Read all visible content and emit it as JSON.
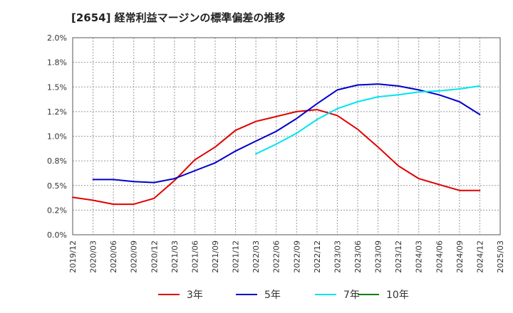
{
  "title": "[2654]  経常利益マージンの標準偏差の推移",
  "chart_data": {
    "type": "line",
    "x": [
      "2019/12",
      "2020/03",
      "2020/06",
      "2020/09",
      "2020/12",
      "2021/03",
      "2021/06",
      "2021/09",
      "2021/12",
      "2022/03",
      "2022/06",
      "2022/09",
      "2022/12",
      "2023/03",
      "2023/06",
      "2023/09",
      "2023/12",
      "2024/03",
      "2024/06",
      "2024/09",
      "2024/12",
      "2025/03"
    ],
    "ylim": [
      0,
      2.0
    ],
    "yticks": [
      "0.0%",
      "0.2%",
      "0.5%",
      "0.8%",
      "1.0%",
      "1.2%",
      "1.5%",
      "1.8%",
      "2.0%"
    ],
    "grid": true,
    "legend_position": "bottom",
    "series": [
      {
        "name": "3年",
        "color": "#e00000",
        "values": [
          0.38,
          0.35,
          0.31,
          0.31,
          0.37,
          0.55,
          0.76,
          0.89,
          1.06,
          1.15,
          1.2,
          1.25,
          1.27,
          1.21,
          1.07,
          0.89,
          0.7,
          0.57,
          0.51,
          0.45,
          0.45,
          null
        ]
      },
      {
        "name": "5年",
        "color": "#0000cc",
        "values": [
          null,
          0.56,
          0.56,
          0.54,
          0.53,
          0.57,
          0.65,
          0.73,
          0.85,
          0.95,
          1.05,
          1.18,
          1.33,
          1.47,
          1.52,
          1.53,
          1.51,
          1.47,
          1.42,
          1.35,
          1.22,
          null
        ]
      },
      {
        "name": "7年",
        "color": "#00e5ee",
        "values": [
          null,
          null,
          null,
          null,
          null,
          null,
          null,
          null,
          null,
          0.82,
          0.92,
          1.03,
          1.17,
          1.28,
          1.35,
          1.4,
          1.42,
          1.45,
          1.46,
          1.48,
          1.51,
          null
        ]
      },
      {
        "name": "10年",
        "color": "#008000",
        "values": [
          null,
          null,
          null,
          null,
          null,
          null,
          null,
          null,
          null,
          null,
          null,
          null,
          null,
          null,
          null,
          null,
          null,
          null,
          null,
          null,
          null,
          null
        ]
      }
    ]
  }
}
